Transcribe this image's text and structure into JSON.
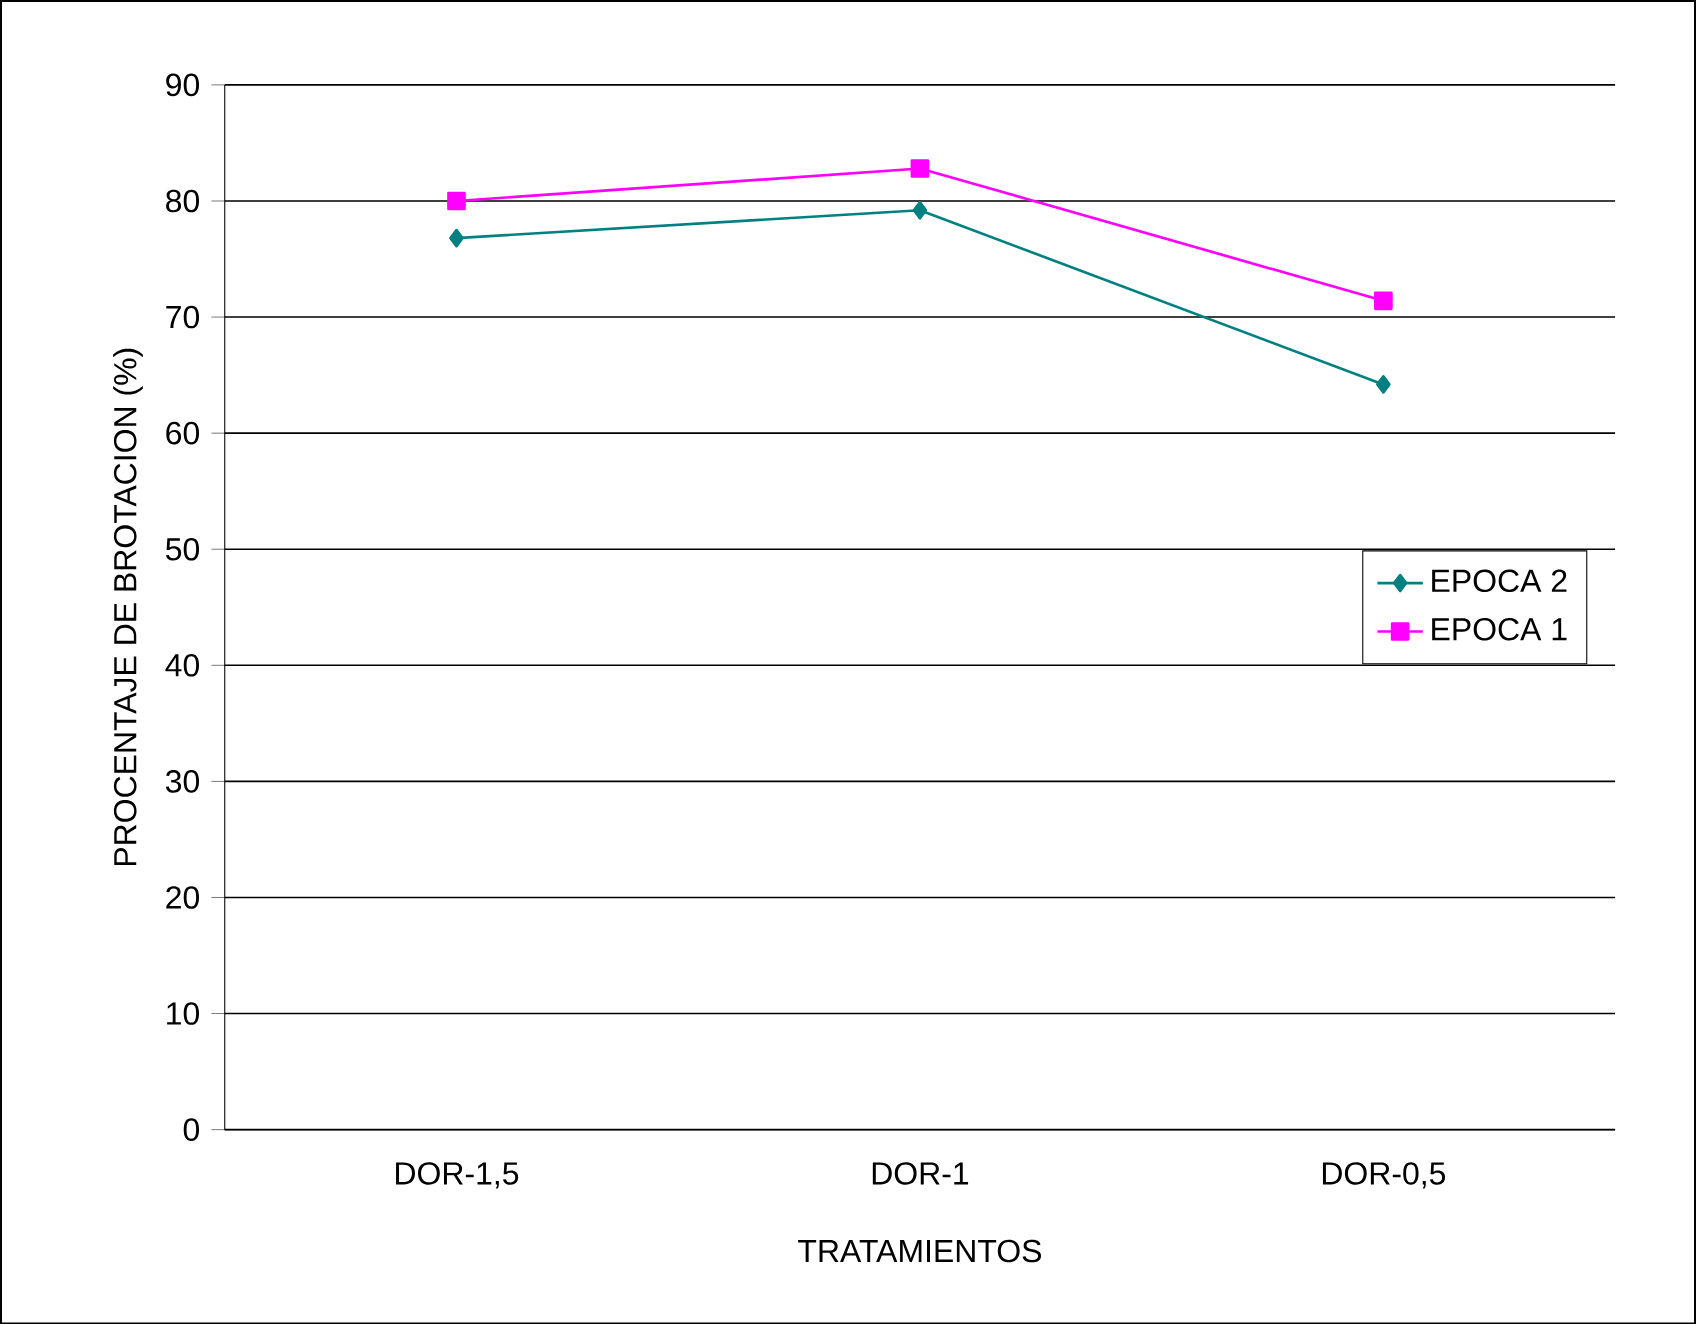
{
  "chart_data": {
    "type": "line",
    "xlabel": "TRATAMIENTOS",
    "ylabel": "PROCENTAJE DE BROTACION (%)",
    "categories": [
      "DOR-1,5",
      "DOR-1",
      "DOR-0,5"
    ],
    "series": [
      {
        "name": "EPOCA 2",
        "color": "#008080",
        "marker": "diamond",
        "values": [
          76.8,
          79.2,
          64.2
        ]
      },
      {
        "name": "EPOCA 1",
        "color": "#ff00ff",
        "marker": "square",
        "values": [
          80.0,
          82.8,
          71.4
        ]
      }
    ],
    "ylim": [
      0,
      90
    ],
    "yticks": [
      0,
      10,
      20,
      30,
      40,
      50,
      60,
      70,
      80,
      90
    ],
    "grid": "y",
    "legend": "right",
    "line_style": "solid"
  }
}
